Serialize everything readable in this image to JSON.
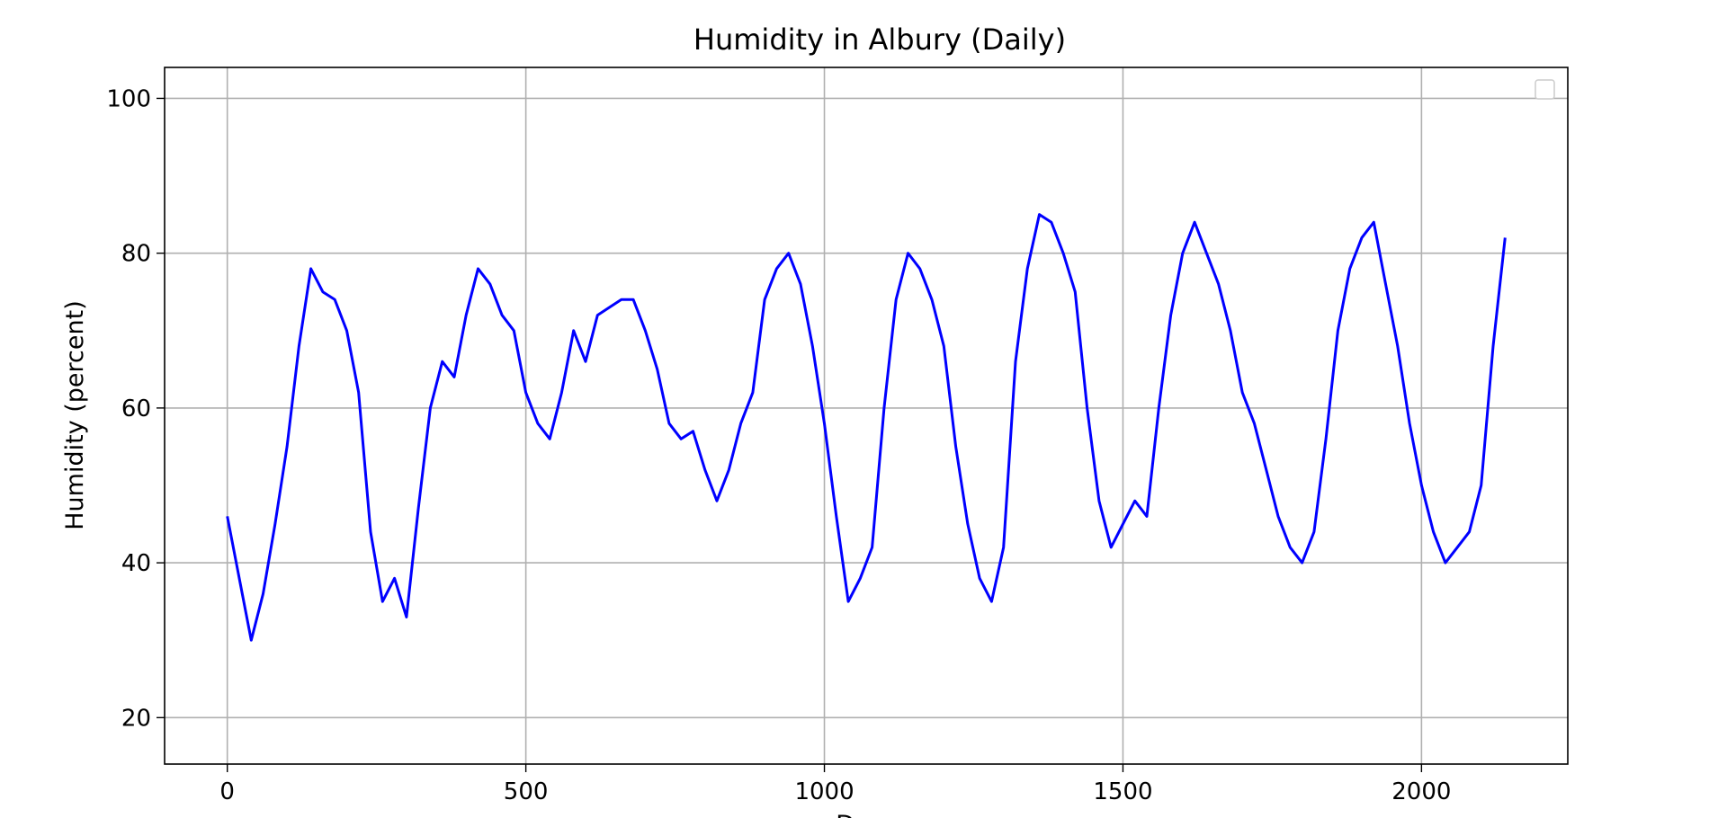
{
  "chart_data": {
    "type": "line",
    "title": "Humidity in Albury (Daily)",
    "xlabel": "Days",
    "ylabel": "Humidity (percent)",
    "xlim": [
      -105,
      2245
    ],
    "ylim": [
      14,
      104
    ],
    "xticks": [
      0,
      500,
      1000,
      1500,
      2000
    ],
    "yticks": [
      20,
      40,
      60,
      80,
      100
    ],
    "grid": true,
    "legend": {
      "placement": "top-right",
      "entries": []
    },
    "series": [
      {
        "color": "#0000ff",
        "x": [
          0,
          20,
          40,
          60,
          80,
          100,
          120,
          140,
          160,
          180,
          200,
          220,
          240,
          260,
          280,
          300,
          320,
          340,
          360,
          380,
          400,
          420,
          440,
          460,
          480,
          500,
          520,
          540,
          560,
          580,
          600,
          620,
          640,
          660,
          680,
          700,
          720,
          740,
          760,
          780,
          800,
          820,
          840,
          860,
          880,
          900,
          920,
          940,
          960,
          980,
          1000,
          1020,
          1040,
          1060,
          1080,
          1100,
          1120,
          1140,
          1160,
          1180,
          1200,
          1220,
          1240,
          1260,
          1280,
          1300,
          1320,
          1340,
          1360,
          1380,
          1400,
          1420,
          1440,
          1460,
          1480,
          1500,
          1520,
          1540,
          1560,
          1580,
          1600,
          1620,
          1640,
          1660,
          1680,
          1700,
          1720,
          1740,
          1760,
          1780,
          1800,
          1820,
          1840,
          1860,
          1880,
          1900,
          1920,
          1940,
          1960,
          1980,
          2000,
          2020,
          2040,
          2060,
          2080,
          2100,
          2120,
          2140
        ],
        "y": [
          46,
          38,
          30,
          36,
          45,
          55,
          68,
          78,
          75,
          74,
          70,
          62,
          44,
          35,
          38,
          33,
          47,
          60,
          66,
          64,
          72,
          78,
          76,
          72,
          70,
          62,
          58,
          56,
          62,
          70,
          66,
          72,
          73,
          74,
          74,
          70,
          65,
          58,
          56,
          57,
          52,
          48,
          52,
          58,
          62,
          74,
          78,
          80,
          76,
          68,
          58,
          46,
          35,
          38,
          42,
          60,
          74,
          80,
          78,
          74,
          68,
          55,
          45,
          38,
          35,
          42,
          66,
          78,
          85,
          84,
          80,
          75,
          60,
          48,
          42,
          45,
          48,
          46,
          60,
          72,
          80,
          84,
          80,
          76,
          70,
          62,
          58,
          52,
          46,
          42,
          40,
          44,
          56,
          70,
          78,
          82,
          84,
          76,
          68,
          58,
          50,
          44,
          40,
          42,
          44,
          50,
          68,
          82
        ]
      }
    ]
  }
}
